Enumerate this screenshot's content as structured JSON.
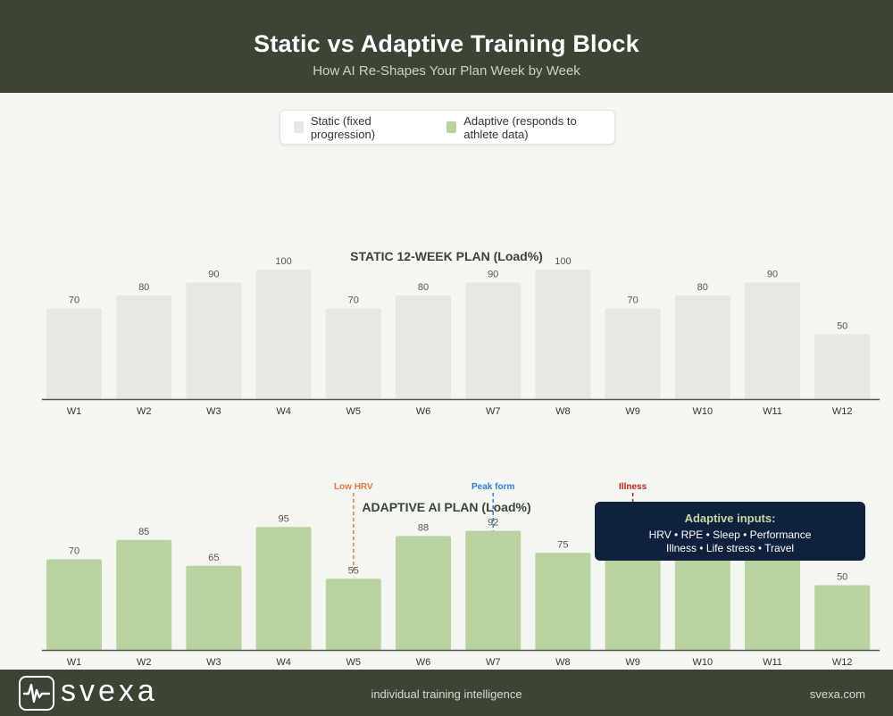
{
  "header": {
    "title": "Static vs Adaptive Training Block",
    "subtitle": "How AI Re-Shapes Your Plan Week by Week"
  },
  "legend": {
    "items": [
      {
        "label": "Static (fixed progression)",
        "color": "#e6e9e1"
      },
      {
        "label": "Adaptive (responds to athlete data)",
        "color": "#b9d3a0"
      }
    ]
  },
  "chart_data": [
    {
      "type": "bar",
      "title": "STATIC 12-WEEK PLAN (Load%)",
      "categories": [
        "W1",
        "W2",
        "W3",
        "W4",
        "W5",
        "W6",
        "W7",
        "W8",
        "W9",
        "W10",
        "W11",
        "W12"
      ],
      "values": [
        70,
        80,
        90,
        100,
        70,
        80,
        90,
        100,
        70,
        80,
        90,
        50
      ],
      "ylim": [
        0,
        100
      ],
      "color": "#e6e9e1"
    },
    {
      "type": "bar",
      "title": "ADAPTIVE AI PLAN (Load%)",
      "categories": [
        "W1",
        "W2",
        "W3",
        "W4",
        "W5",
        "W6",
        "W7",
        "W8",
        "W9",
        "W10",
        "W11",
        "W12"
      ],
      "values": [
        70,
        85,
        65,
        95,
        55,
        88,
        92,
        75,
        72,
        72,
        70,
        50
      ],
      "value_labels": [
        "70",
        "85",
        "65",
        "95",
        "55",
        "88",
        "92",
        "75",
        "",
        "",
        "",
        "50"
      ],
      "ylim": [
        0,
        100
      ],
      "color": "#b9d3a0",
      "annotations": [
        {
          "text": "Low HRV",
          "week": "W5",
          "color": "#e07b3a"
        },
        {
          "text": "Peak form",
          "week": "W7",
          "color": "#2f7fd6"
        },
        {
          "text": "Illness",
          "week": "W9",
          "color": "#c0251d"
        }
      ]
    }
  ],
  "inputs_box": {
    "title": "Adaptive inputs:",
    "line1": "HRV • RPE • Sleep • Performance",
    "line2": "Illness • Life stress • Travel"
  },
  "footer": {
    "brand": "svexa",
    "tagline": "individual training intelligence",
    "site": "svexa.com"
  }
}
